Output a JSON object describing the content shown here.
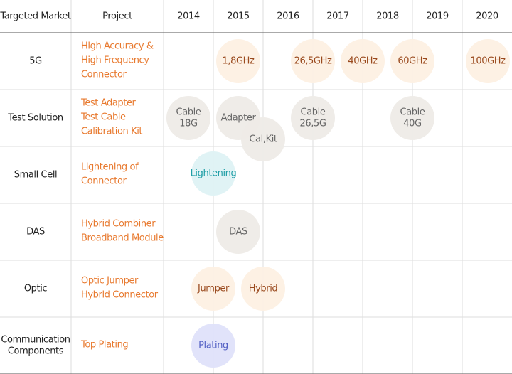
{
  "header": {
    "columns": [
      "Targeted Market",
      "Project",
      "2014",
      "2015",
      "2016",
      "2017",
      "2018",
      "2019",
      "2020"
    ]
  },
  "rows": [
    {
      "market": [
        "5G"
      ],
      "project": [
        "High Accuracy &",
        "High Frequency",
        "Connector"
      ],
      "bubbles": [
        [
          "1,8GHz"
        ],
        [
          "26,5GHz"
        ],
        [
          "40GHz"
        ],
        [
          "60GHz"
        ],
        [
          "100GHz"
        ]
      ]
    },
    {
      "market": [
        "Test Solution"
      ],
      "project": [
        "Test Adapter",
        "Test Cable",
        "Calibration Kit"
      ],
      "bubbles": [
        [
          "Cable",
          "18G"
        ],
        [
          "Adapter"
        ],
        [
          "Cal,Kit"
        ],
        [
          "Cable",
          "26,5G"
        ],
        [
          "Cable",
          "40G"
        ]
      ]
    },
    {
      "market": [
        "Small Cell"
      ],
      "project": [
        "Lightening of",
        "Connector"
      ],
      "bubbles": [
        [
          "Lightening"
        ]
      ]
    },
    {
      "market": [
        "DAS"
      ],
      "project": [
        "Hybrid Combiner",
        "Broadband Module"
      ],
      "bubbles": [
        [
          "DAS"
        ]
      ]
    },
    {
      "market": [
        "Optic"
      ],
      "project": [
        "Optic Jumper",
        "Hybrid Connector"
      ],
      "bubbles": [
        [
          "Jumper"
        ],
        [
          "Hybrid"
        ]
      ]
    },
    {
      "market": [
        "Communication",
        "Components"
      ],
      "project": [
        "Top Plating"
      ],
      "bubbles": [
        [
          "Plating"
        ]
      ]
    }
  ]
}
